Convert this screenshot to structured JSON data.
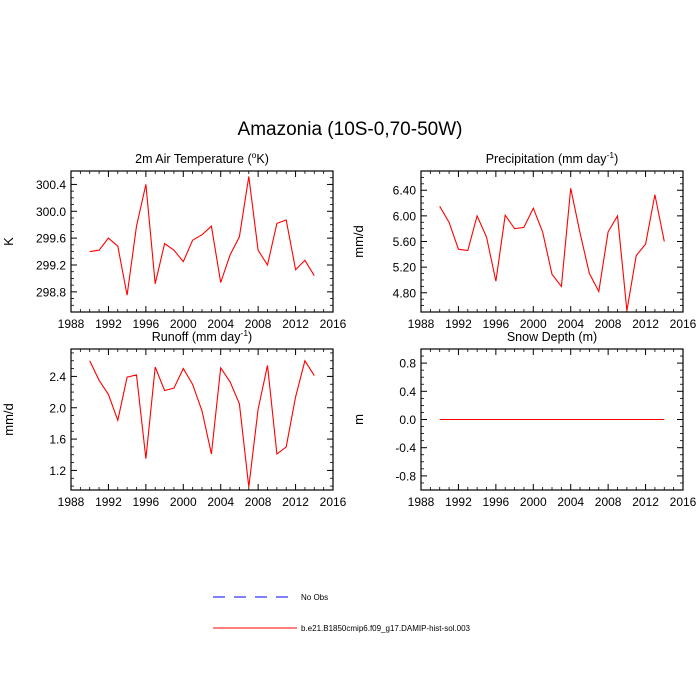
{
  "figure": {
    "title": "Amazonia (10S-0,70-50W)"
  },
  "legend": {
    "position": "bottom-center",
    "items": [
      {
        "label": "No Obs",
        "color": "#0000ff",
        "style": "dashed"
      },
      {
        "label": "b.e21.B1850cmip6.f09_g17.DAMIP-hist-sol.003",
        "color": "#ff0000",
        "style": "solid"
      }
    ]
  },
  "chart_data": [
    {
      "type": "line",
      "title": "2m Air Temperature (°K)",
      "title_main": "2m Air Temperature (",
      "title_sup": "o",
      "title_tail": "K)",
      "xlabel": "",
      "ylabel": "K",
      "xlim": [
        1988,
        2016
      ],
      "ylim": [
        298.5,
        300.6
      ],
      "xticks": [
        1988,
        1992,
        1996,
        2000,
        2004,
        2008,
        2012,
        2016
      ],
      "xtick_labels": [
        "1988",
        "1992",
        "1996",
        "2000",
        "2004",
        "2008",
        "2012",
        "2016"
      ],
      "yticks": [
        298.8,
        299.2,
        299.6,
        300.0,
        300.4
      ],
      "ytick_labels": [
        "298.8",
        "299.2",
        "299.6",
        "300.0",
        "300.4"
      ],
      "grid": false,
      "series": [
        {
          "color": "#ff0000",
          "x": [
            1990,
            1991,
            1992,
            1993,
            1994,
            1995,
            1996,
            1997,
            1998,
            1999,
            2000,
            2001,
            2002,
            2003,
            2004,
            2005,
            2006,
            2007,
            2008,
            2009,
            2010,
            2011,
            2012,
            2013,
            2014
          ],
          "y": [
            299.4,
            299.42,
            299.6,
            299.48,
            298.75,
            299.78,
            300.4,
            298.92,
            299.52,
            299.42,
            299.25,
            299.57,
            299.65,
            299.78,
            298.94,
            299.35,
            299.62,
            300.52,
            299.42,
            299.2,
            299.82,
            299.87,
            299.13,
            299.27,
            299.04
          ]
        }
      ]
    },
    {
      "type": "line",
      "title": "Precipitation (mm day-1)",
      "title_main": "Precipitation (mm day",
      "title_sup": "-1",
      "title_tail": ")",
      "xlabel": "",
      "ylabel": "mm/d",
      "xlim": [
        1988,
        2016
      ],
      "ylim": [
        4.5,
        6.7
      ],
      "xticks": [
        1988,
        1992,
        1996,
        2000,
        2004,
        2008,
        2012,
        2016
      ],
      "xtick_labels": [
        "1988",
        "1992",
        "1996",
        "2000",
        "2004",
        "2008",
        "2012",
        "2016"
      ],
      "yticks": [
        4.8,
        5.2,
        5.6,
        6.0,
        6.4
      ],
      "ytick_labels": [
        "4.80",
        "5.20",
        "5.60",
        "6.00",
        "6.40"
      ],
      "grid": false,
      "series": [
        {
          "color": "#ff0000",
          "x": [
            1990,
            1991,
            1992,
            1993,
            1994,
            1995,
            1996,
            1997,
            1998,
            1999,
            2000,
            2001,
            2002,
            2003,
            2004,
            2005,
            2006,
            2007,
            2008,
            2009,
            2010,
            2011,
            2012,
            2013,
            2014
          ],
          "y": [
            6.15,
            5.9,
            5.48,
            5.46,
            6.0,
            5.67,
            4.98,
            6.01,
            5.8,
            5.82,
            6.12,
            5.75,
            5.09,
            4.9,
            6.43,
            5.73,
            5.1,
            4.82,
            5.75,
            6.0,
            4.52,
            5.38,
            5.56,
            6.33,
            5.6
          ]
        }
      ]
    },
    {
      "type": "line",
      "title": "Runoff (mm day-1)",
      "title_main": "Runoff (mm day",
      "title_sup": "-1",
      "title_tail": ")",
      "xlabel": "",
      "ylabel": "mm/d",
      "xlim": [
        1988,
        2016
      ],
      "ylim": [
        0.95,
        2.75
      ],
      "xticks": [
        1988,
        1992,
        1996,
        2000,
        2004,
        2008,
        2012,
        2016
      ],
      "xtick_labels": [
        "1988",
        "1992",
        "1996",
        "2000",
        "2004",
        "2008",
        "2012",
        "2016"
      ],
      "yticks": [
        1.2,
        1.6,
        2.0,
        2.4
      ],
      "ytick_labels": [
        "1.2",
        "1.6",
        "2.0",
        "2.4"
      ],
      "grid": false,
      "series": [
        {
          "color": "#ff0000",
          "x": [
            1990,
            1991,
            1992,
            1993,
            1994,
            1995,
            1996,
            1997,
            1998,
            1999,
            2000,
            2001,
            2002,
            2003,
            2004,
            2005,
            2006,
            2007,
            2008,
            2009,
            2010,
            2011,
            2012,
            2013,
            2014
          ],
          "y": [
            2.6,
            2.35,
            2.17,
            1.84,
            2.39,
            2.42,
            1.35,
            2.52,
            2.22,
            2.25,
            2.5,
            2.3,
            1.96,
            1.41,
            2.51,
            2.33,
            2.05,
            0.99,
            1.98,
            2.54,
            1.41,
            1.5,
            2.14,
            2.6,
            2.41
          ]
        }
      ]
    },
    {
      "type": "line",
      "title": "Snow Depth (m)",
      "title_main": "Snow Depth (m)",
      "title_sup": "",
      "title_tail": "",
      "xlabel": "",
      "ylabel": "m",
      "xlim": [
        1988,
        2016
      ],
      "ylim": [
        -1.0,
        1.0
      ],
      "xticks": [
        1988,
        1992,
        1996,
        2000,
        2004,
        2008,
        2012,
        2016
      ],
      "xtick_labels": [
        "1988",
        "1992",
        "1996",
        "2000",
        "2004",
        "2008",
        "2012",
        "2016"
      ],
      "yticks": [
        -0.8,
        -0.4,
        0.0,
        0.4,
        0.8
      ],
      "ytick_labels": [
        "-0.8",
        "-0.4",
        "0.0",
        "0.4",
        "0.8"
      ],
      "grid": false,
      "series": [
        {
          "color": "#ff0000",
          "x": [
            1990,
            1991,
            1992,
            1993,
            1994,
            1995,
            1996,
            1997,
            1998,
            1999,
            2000,
            2001,
            2002,
            2003,
            2004,
            2005,
            2006,
            2007,
            2008,
            2009,
            2010,
            2011,
            2012,
            2013,
            2014
          ],
          "y": [
            0,
            0,
            0,
            0,
            0,
            0,
            0,
            0,
            0,
            0,
            0,
            0,
            0,
            0,
            0,
            0,
            0,
            0,
            0,
            0,
            0,
            0,
            0,
            0,
            0
          ]
        }
      ]
    }
  ]
}
